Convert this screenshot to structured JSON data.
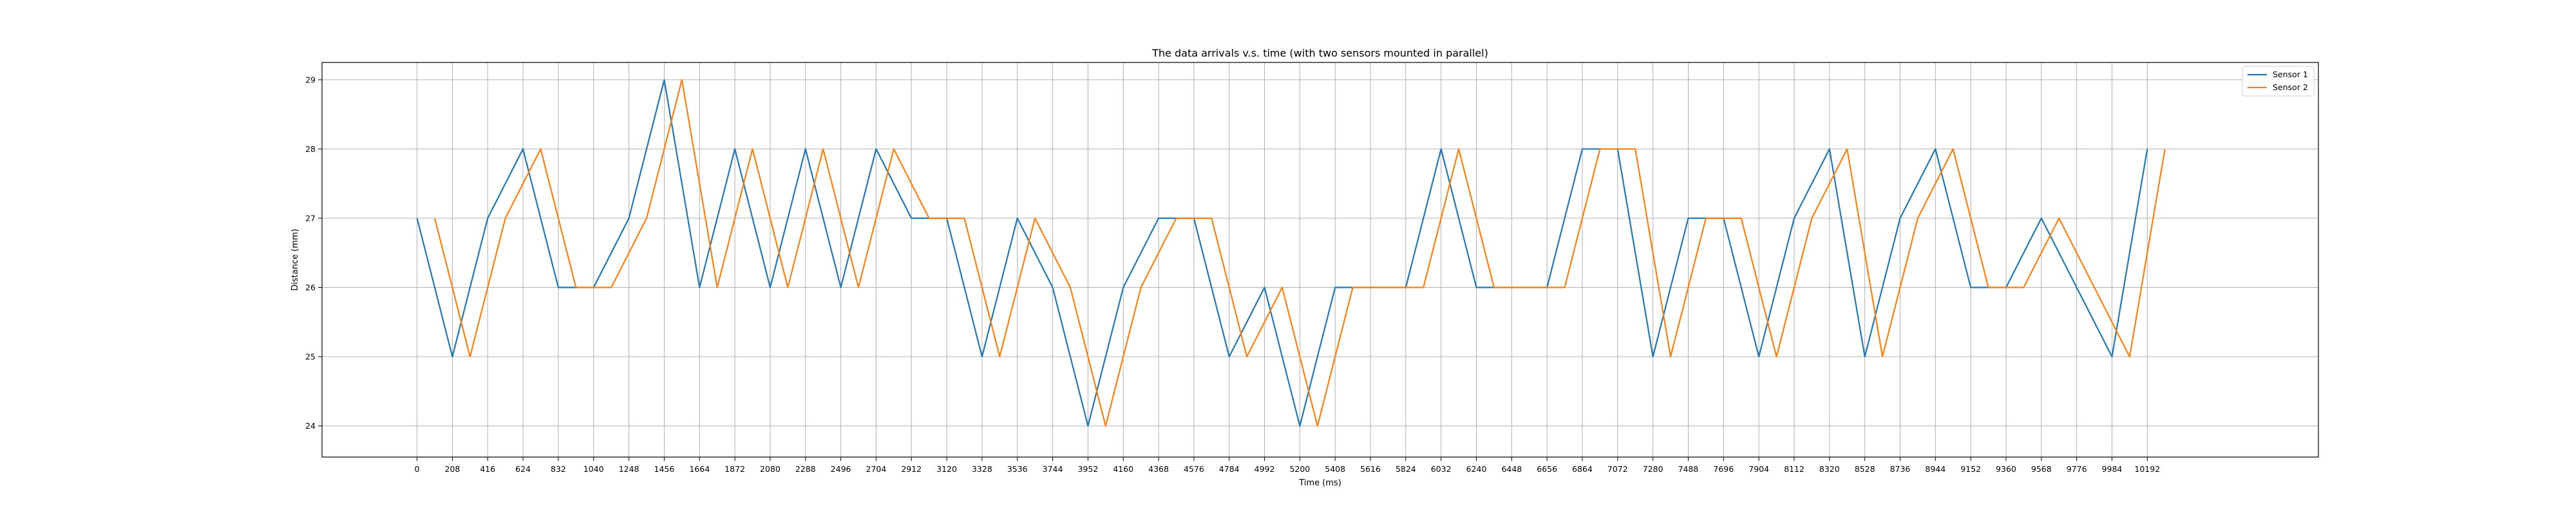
{
  "chart_data": {
    "type": "line",
    "title": "The data arrivals v.s. time (with two sensors mounted in parallel)",
    "xlabel": "Time (ms)",
    "ylabel": "Distance (mm)",
    "xlim": [
      -560,
      11200
    ],
    "ylim": [
      23.55,
      29.25
    ],
    "xticks": [
      0,
      208,
      416,
      624,
      832,
      1040,
      1248,
      1456,
      1664,
      1872,
      2080,
      2288,
      2496,
      2704,
      2912,
      3120,
      3328,
      3536,
      3744,
      3952,
      4160,
      4368,
      4576,
      4784,
      4992,
      5200,
      5408,
      5616,
      5824,
      6032,
      6240,
      6448,
      6656,
      6864,
      7072,
      7280,
      7488,
      7696,
      7904,
      8112,
      8320,
      8528,
      8736,
      8944,
      9152,
      9360,
      9568,
      9776,
      9984,
      10192
    ],
    "yticks": [
      24,
      25,
      26,
      27,
      28,
      29
    ],
    "grid": true,
    "legend_position": "top-right",
    "series": [
      {
        "name": "Sensor 1",
        "color": "#1f77b4",
        "x": [
          0,
          208,
          416,
          624,
          832,
          1040,
          1248,
          1456,
          1664,
          1872,
          2080,
          2288,
          2496,
          2704,
          2912,
          3120,
          3328,
          3536,
          3744,
          3952,
          4160,
          4368,
          4576,
          4784,
          4992,
          5200,
          5408,
          5616,
          5824,
          6032,
          6240,
          6448,
          6656,
          6864,
          7072,
          7280,
          7488,
          7696,
          7904,
          8112,
          8320,
          8528,
          8736,
          8944,
          9152,
          9360,
          9568,
          9776,
          9984,
          10192
        ],
        "y": [
          27,
          25,
          27,
          28,
          26,
          26,
          27,
          29,
          26,
          28,
          26,
          28,
          26,
          28,
          27,
          27,
          25,
          27,
          26,
          24,
          26,
          27,
          27,
          25,
          26,
          24,
          26,
          26,
          26,
          28,
          26,
          26,
          26,
          28,
          28,
          25,
          27,
          27,
          25,
          27,
          28,
          25,
          27,
          28,
          26,
          26,
          27,
          26,
          25,
          28
        ]
      },
      {
        "name": "Sensor 2",
        "color": "#ff7f0e",
        "x": [
          104,
          312,
          520,
          728,
          936,
          1144,
          1352,
          1560,
          1768,
          1976,
          2184,
          2392,
          2600,
          2808,
          3016,
          3224,
          3432,
          3640,
          3848,
          4056,
          4264,
          4472,
          4680,
          4888,
          5096,
          5304,
          5512,
          5720,
          5928,
          6136,
          6344,
          6552,
          6760,
          6968,
          7176,
          7384,
          7592,
          7800,
          8008,
          8216,
          8424,
          8632,
          8840,
          9048,
          9256,
          9464,
          9672,
          9880,
          10088,
          10296
        ],
        "y": [
          27,
          25,
          27,
          28,
          26,
          26,
          27,
          29,
          26,
          28,
          26,
          28,
          26,
          28,
          27,
          27,
          25,
          27,
          26,
          24,
          26,
          27,
          27,
          25,
          26,
          24,
          26,
          26,
          26,
          28,
          26,
          26,
          26,
          28,
          28,
          25,
          27,
          27,
          25,
          27,
          28,
          25,
          27,
          28,
          26,
          26,
          27,
          26,
          25,
          28
        ]
      }
    ]
  }
}
